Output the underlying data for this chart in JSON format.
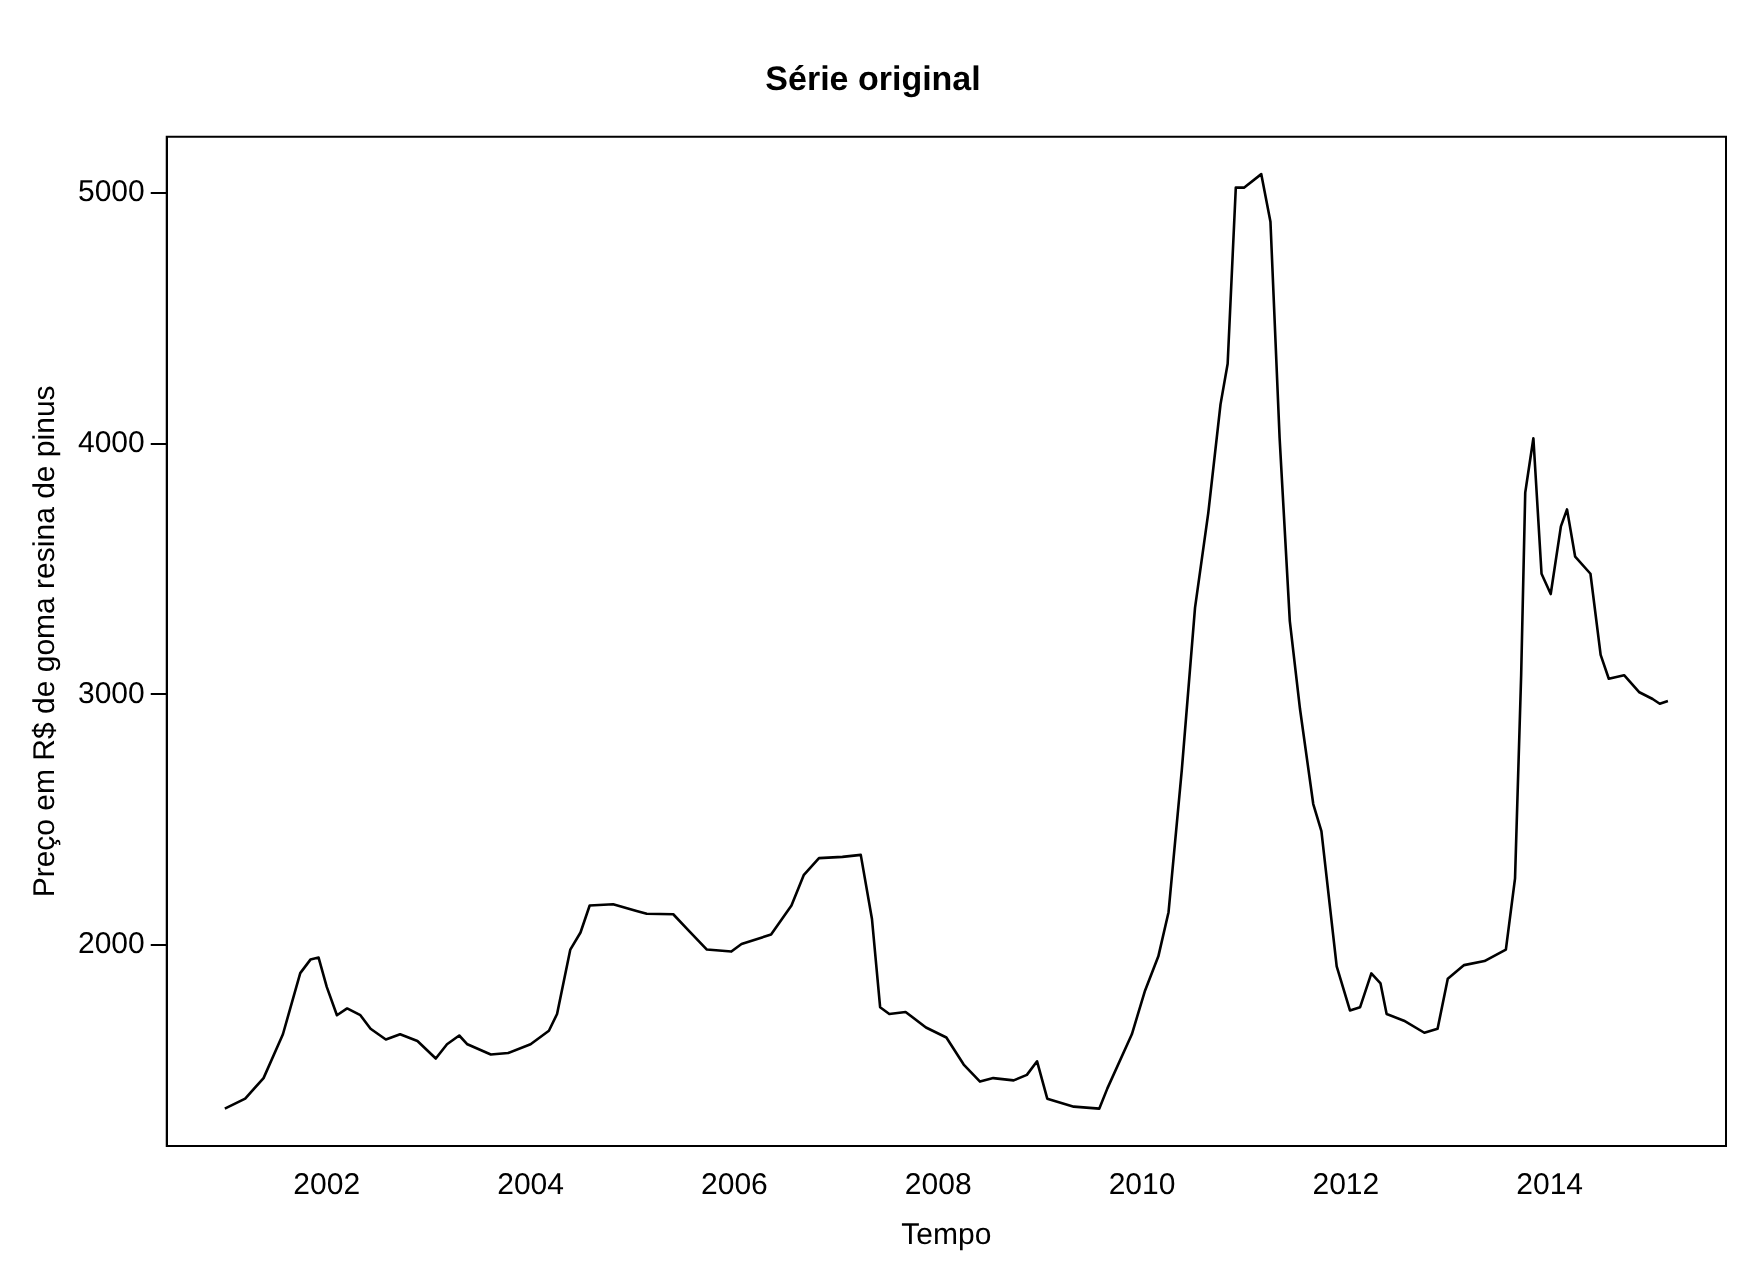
{
  "chart_data": {
    "type": "line",
    "title": "Série original",
    "xlabel": "Tempo",
    "ylabel": "Preço em R$ de goma resina de pinus",
    "x": [
      2001.0,
      2001.2,
      2001.38,
      2001.57,
      2001.74,
      2001.84,
      2001.92,
      2002.0,
      2002.1,
      2002.2,
      2002.33,
      2002.43,
      2002.58,
      2002.72,
      2002.89,
      2003.07,
      2003.18,
      2003.3,
      2003.38,
      2003.61,
      2003.78,
      2004.0,
      2004.18,
      2004.26,
      2004.39,
      2004.49,
      2004.58,
      2004.81,
      2005.04,
      2005.14,
      2005.4,
      2005.54,
      2005.73,
      2005.97,
      2006.07,
      2006.36,
      2006.56,
      2006.68,
      2006.83,
      2007.06,
      2007.24,
      2007.35,
      2007.43,
      2007.52,
      2007.68,
      2007.88,
      2008.08,
      2008.25,
      2008.41,
      2008.54,
      2008.74,
      2008.87,
      2008.97,
      2009.07,
      2009.33,
      2009.58,
      2009.66,
      2009.9,
      2010.03,
      2010.16,
      2010.26,
      2010.39,
      2010.52,
      2010.65,
      2010.77,
      2010.84,
      2010.92,
      2011.0,
      2011.17,
      2011.26,
      2011.35,
      2011.45,
      2011.55,
      2011.68,
      2011.76,
      2011.91,
      2012.04,
      2012.14,
      2012.25,
      2012.34,
      2012.4,
      2012.57,
      2012.77,
      2012.9,
      2013.0,
      2013.16,
      2013.36,
      2013.57,
      2013.66,
      2013.72,
      2013.76,
      2013.84,
      2013.92,
      2014.01,
      2014.11,
      2014.17,
      2014.25,
      2014.4,
      2014.5,
      2014.58,
      2014.73,
      2014.88,
      2015.01,
      2015.08,
      2015.16
    ],
    "series": [
      {
        "color": "#000000",
        "values": [
          1346,
          1386,
          1468,
          1643,
          1887,
          1941,
          1949,
          1832,
          1719,
          1746,
          1719,
          1665,
          1622,
          1643,
          1616,
          1546,
          1603,
          1638,
          1603,
          1562,
          1568,
          1603,
          1657,
          1724,
          1981,
          2049,
          2157,
          2162,
          2135,
          2124,
          2122,
          2062,
          1981,
          1973,
          2003,
          2041,
          2157,
          2278,
          2346,
          2351,
          2359,
          2103,
          1751,
          1724,
          1732,
          1670,
          1630,
          1522,
          1454,
          1468,
          1459,
          1481,
          1535,
          1386,
          1354,
          1346,
          1427,
          1643,
          1818,
          1954,
          2130,
          2697,
          3346,
          3724,
          4157,
          4319,
          5022,
          5022,
          5076,
          4886,
          4022,
          3292,
          2941,
          2562,
          2454,
          1914,
          1738,
          1751,
          1886,
          1846,
          1724,
          1697,
          1649,
          1665,
          1865,
          1919,
          1935,
          1981,
          2265,
          3076,
          3805,
          4022,
          3481,
          3400,
          3670,
          3738,
          3549,
          3481,
          3157,
          3062,
          3076,
          3008,
          2981,
          2962,
          2973
        ]
      }
    ],
    "xlim": [
      2000.43,
      2015.73
    ],
    "ylim": [
      1197,
      5225
    ],
    "xticks": [
      2002,
      2004,
      2006,
      2008,
      2010,
      2012,
      2014
    ],
    "yticks": [
      2000,
      3000,
      4000,
      5000
    ],
    "grid": false,
    "legend": false,
    "marker": "none",
    "line_style": "solid"
  }
}
